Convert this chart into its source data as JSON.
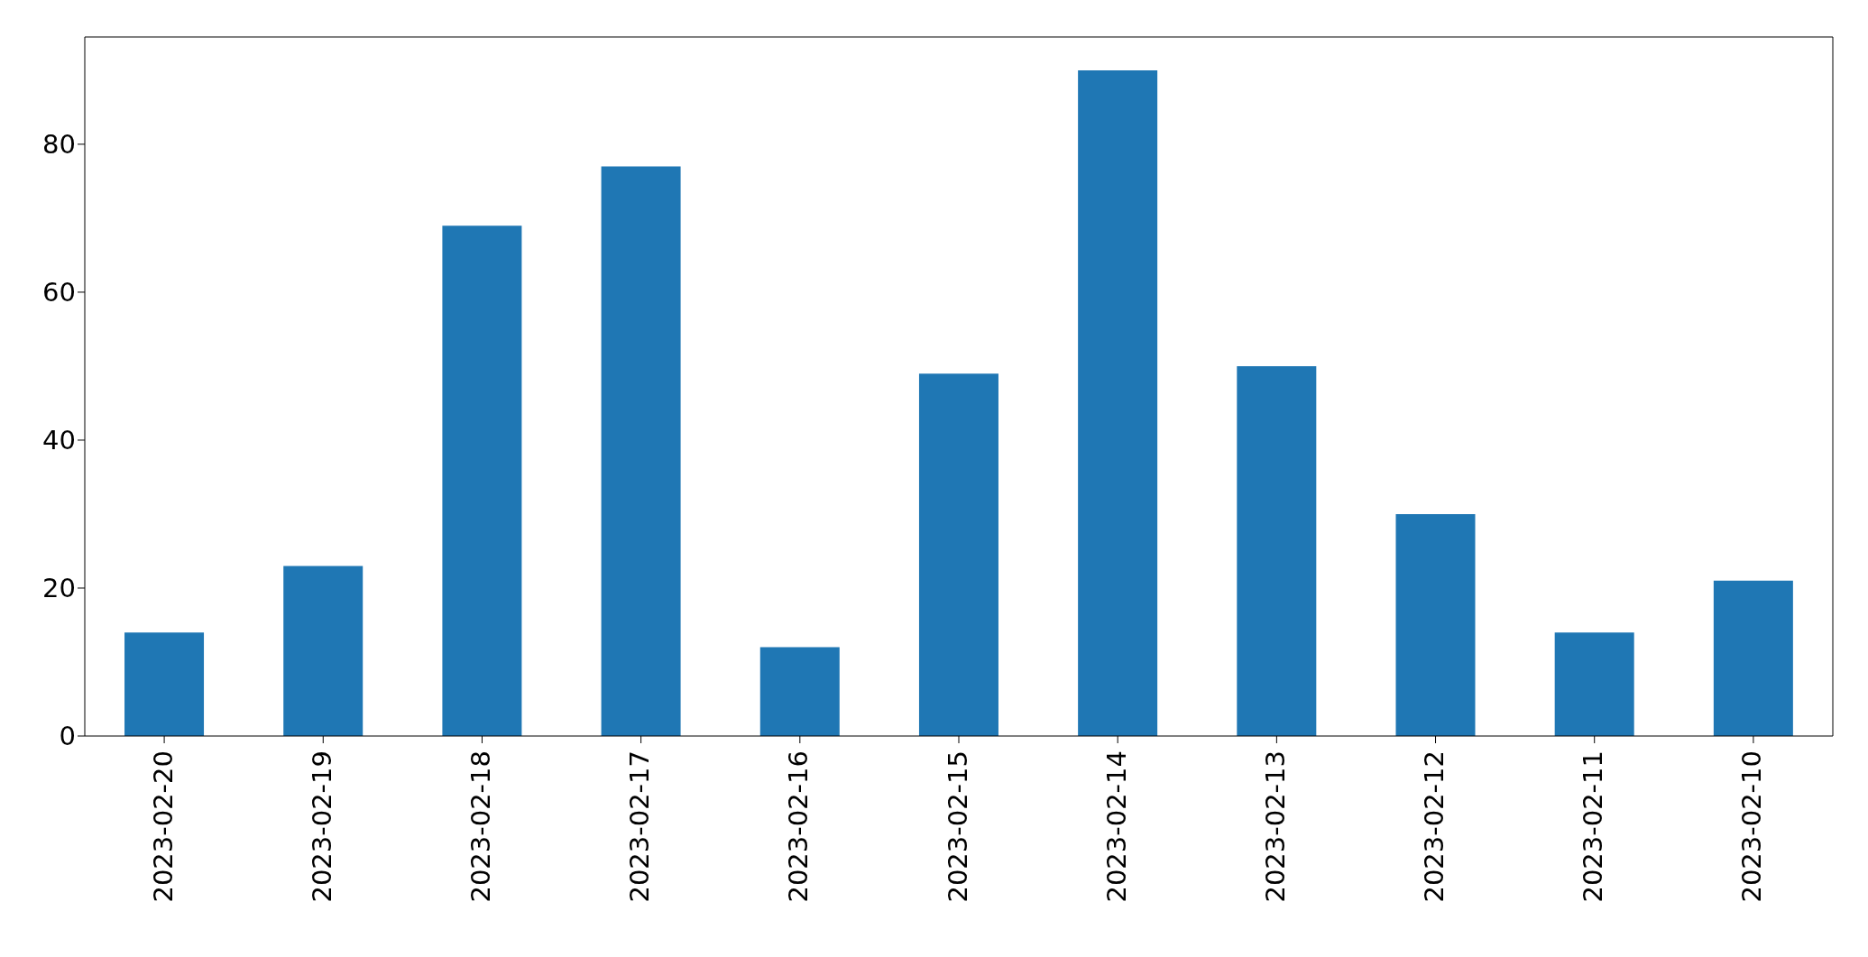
{
  "chart_data": {
    "type": "bar",
    "categories": [
      "2023-02-20",
      "2023-02-19",
      "2023-02-18",
      "2023-02-17",
      "2023-02-16",
      "2023-02-15",
      "2023-02-14",
      "2023-02-13",
      "2023-02-12",
      "2023-02-11",
      "2023-02-10"
    ],
    "values": [
      14,
      23,
      69,
      77,
      12,
      49,
      90,
      50,
      30,
      14,
      21
    ],
    "color": "#1f77b4",
    "ylim": [
      0,
      94.5
    ],
    "yticks": [
      0,
      20,
      40,
      60,
      80
    ],
    "grid": false
  }
}
